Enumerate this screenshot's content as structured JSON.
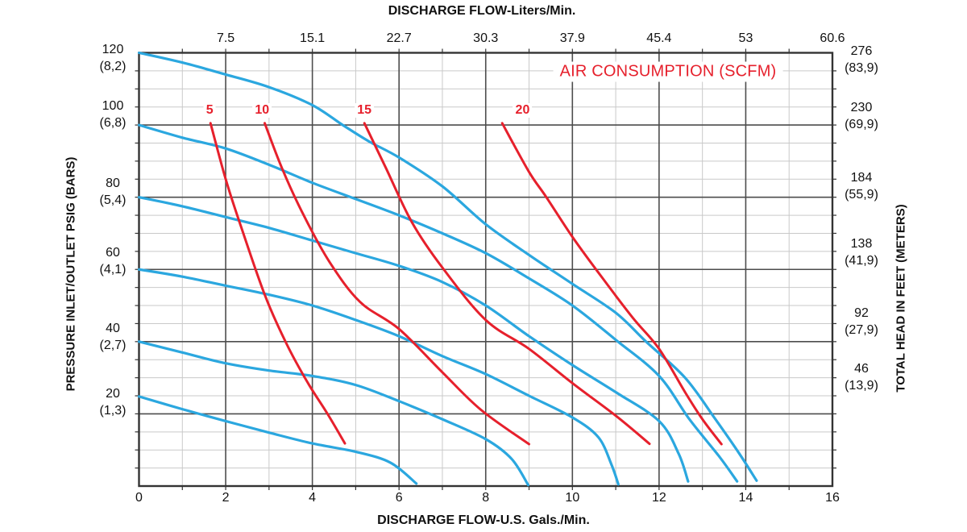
{
  "page": {
    "top_axis_title": "DISCHARGE FLOW-Liters/Min.",
    "bottom_axis_title": "DISCHARGE FLOW-U.S. Gals./Min.",
    "left_axis_title": "PRESSURE INLET/OUTLET PSIG (BARS)",
    "right_axis_title": "TOTAL HEAD IN FEET (METERS)",
    "annotation": "AIR CONSUMPTION (SCFM)"
  },
  "colors": {
    "water_curve": "#2BA7DF",
    "air_curve": "#E6202C",
    "annotation_text": "#E6202C",
    "grid_minor": "#C9C9C9",
    "grid_major": "#4D4D4D",
    "frame": "#333333",
    "text": "#1A1A1A"
  },
  "chart_data": {
    "type": "line",
    "title": "AIR CONSUMPTION (SCFM)",
    "x_axis_bottom": {
      "label": "DISCHARGE FLOW-U.S. Gals./Min.",
      "range": [
        0,
        16
      ],
      "ticks": [
        "0",
        "2",
        "4",
        "6",
        "8",
        "10",
        "12",
        "14",
        "16"
      ]
    },
    "x_axis_top": {
      "label": "DISCHARGE FLOW-Liters/Min.",
      "ticks": [
        "7.5",
        "15.1",
        "22.7",
        "30.3",
        "37.9",
        "45.4",
        "53",
        "60.6"
      ],
      "tick_gal_positions": [
        2,
        4,
        6,
        8,
        10,
        12,
        14,
        16
      ]
    },
    "y_axis_left": {
      "label": "PRESSURE INLET/OUTLET PSIG (BARS)",
      "range": [
        0,
        120
      ],
      "tick_psig": [
        120,
        100,
        80,
        60,
        40,
        20
      ],
      "ticks": [
        [
          "120",
          "(8,2)"
        ],
        [
          "100",
          "(6,8)"
        ],
        [
          "80",
          "(5,4)"
        ],
        [
          "60",
          "(4,1)"
        ],
        [
          "40",
          "(2,7)"
        ],
        [
          "20",
          "(1,3)"
        ]
      ]
    },
    "y_axis_right": {
      "label": "TOTAL HEAD IN FEET (METERS)",
      "ticks": [
        [
          "276",
          "(83,9)"
        ],
        [
          "230",
          "(69,9)"
        ],
        [
          "184",
          "(55,9)"
        ],
        [
          "138",
          "(41,9)"
        ],
        [
          "92",
          "(27,9)"
        ],
        [
          "46",
          "(13,9)"
        ]
      ]
    },
    "grid": {
      "x_minor_step_gal": 1,
      "x_major_step_gal": 2,
      "y_minor_step_psig": 5,
      "y_major_step_psig": 20
    },
    "legend_position": "top-right-inside",
    "water_curves": [
      {
        "name": "120 psig curve",
        "points": [
          [
            0,
            120
          ],
          [
            1,
            117.3
          ],
          [
            2,
            114
          ],
          [
            3,
            110.5
          ],
          [
            4,
            105.5
          ],
          [
            4.7,
            100
          ],
          [
            5.3,
            95.5
          ],
          [
            6,
            91
          ],
          [
            7,
            83
          ],
          [
            8,
            72.5
          ],
          [
            9,
            64
          ],
          [
            10,
            56
          ],
          [
            11,
            48
          ],
          [
            11.7,
            40
          ],
          [
            12.6,
            30
          ],
          [
            13.3,
            18.5
          ],
          [
            13.85,
            9
          ],
          [
            14.25,
            1.5
          ]
        ]
      },
      {
        "name": "100 psig curve",
        "points": [
          [
            0,
            100
          ],
          [
            1,
            96.5
          ],
          [
            2,
            93.5
          ],
          [
            3,
            89
          ],
          [
            4,
            84
          ],
          [
            5,
            79.5
          ],
          [
            6,
            75
          ],
          [
            7,
            70
          ],
          [
            8,
            64.5
          ],
          [
            9,
            57.5
          ],
          [
            10,
            50
          ],
          [
            11,
            40.5
          ],
          [
            12,
            30.5
          ],
          [
            12.7,
            18.5
          ],
          [
            13.4,
            8
          ],
          [
            13.8,
            1.3
          ]
        ]
      },
      {
        "name": "80 psig curve",
        "points": [
          [
            0,
            80
          ],
          [
            1,
            77.5
          ],
          [
            2,
            74.5
          ],
          [
            3,
            71.5
          ],
          [
            4,
            68
          ],
          [
            5,
            64.5
          ],
          [
            6,
            61
          ],
          [
            7,
            56.5
          ],
          [
            8,
            50
          ],
          [
            9,
            41.5
          ],
          [
            10,
            33.5
          ],
          [
            11,
            26
          ],
          [
            12,
            18
          ],
          [
            12.45,
            9
          ],
          [
            12.67,
            1.3
          ]
        ]
      },
      {
        "name": "60 psig curve",
        "points": [
          [
            0,
            60
          ],
          [
            1,
            58
          ],
          [
            2,
            55.5
          ],
          [
            3,
            53
          ],
          [
            4,
            50
          ],
          [
            5,
            46
          ],
          [
            6,
            41.5
          ],
          [
            7,
            36
          ],
          [
            8,
            31
          ],
          [
            9,
            25
          ],
          [
            10,
            19
          ],
          [
            10.6,
            13.5
          ],
          [
            10.9,
            6
          ],
          [
            11.06,
            0.5
          ]
        ]
      },
      {
        "name": "40 psig curve",
        "points": [
          [
            0,
            40
          ],
          [
            1,
            37
          ],
          [
            2,
            34
          ],
          [
            3,
            32
          ],
          [
            4,
            30.5
          ],
          [
            5,
            28
          ],
          [
            6,
            23.5
          ],
          [
            7,
            18.5
          ],
          [
            8,
            13
          ],
          [
            8.6,
            7.5
          ],
          [
            8.98,
            0.3
          ]
        ]
      },
      {
        "name": "25 psig curve",
        "points": [
          [
            0,
            24.8
          ],
          [
            1,
            21.3
          ],
          [
            2,
            18
          ],
          [
            3,
            14.8
          ],
          [
            4,
            11.8
          ],
          [
            5,
            9.5
          ],
          [
            5.8,
            6.5
          ],
          [
            6.4,
            0.7
          ]
        ]
      }
    ],
    "air_curves": [
      {
        "scfm": "5",
        "label_gal": 1.63,
        "label_psig": 104,
        "points": [
          [
            1.65,
            100.5
          ],
          [
            2.0,
            85
          ],
          [
            2.35,
            72
          ],
          [
            2.9,
            53
          ],
          [
            3.4,
            39.5
          ],
          [
            3.9,
            28.5
          ],
          [
            4.35,
            20
          ],
          [
            4.75,
            11.8
          ]
        ]
      },
      {
        "scfm": "10",
        "label_gal": 2.84,
        "label_psig": 104,
        "points": [
          [
            2.9,
            100.5
          ],
          [
            3.3,
            88
          ],
          [
            3.8,
            75
          ],
          [
            4.4,
            62
          ],
          [
            5.1,
            51
          ],
          [
            6,
            43.5
          ],
          [
            7,
            31.5
          ],
          [
            7.9,
            21
          ],
          [
            9.0,
            11.6
          ]
        ]
      },
      {
        "scfm": "15",
        "label_gal": 5.2,
        "label_psig": 104,
        "points": [
          [
            5.2,
            100.5
          ],
          [
            5.7,
            88
          ],
          [
            6.3,
            73
          ],
          [
            7,
            60.5
          ],
          [
            8,
            46
          ],
          [
            9,
            38
          ],
          [
            10,
            28.5
          ],
          [
            11,
            19.5
          ],
          [
            11.78,
            11.7
          ]
        ]
      },
      {
        "scfm": "20",
        "label_gal": 8.85,
        "label_psig": 104,
        "points": [
          [
            8.38,
            100.5
          ],
          [
            9,
            87
          ],
          [
            9.4,
            80
          ],
          [
            10,
            69
          ],
          [
            10.7,
            57.5
          ],
          [
            11.4,
            46.5
          ],
          [
            12,
            38
          ],
          [
            12.6,
            26
          ],
          [
            13,
            18.5
          ],
          [
            13.44,
            11.6
          ]
        ]
      }
    ]
  }
}
